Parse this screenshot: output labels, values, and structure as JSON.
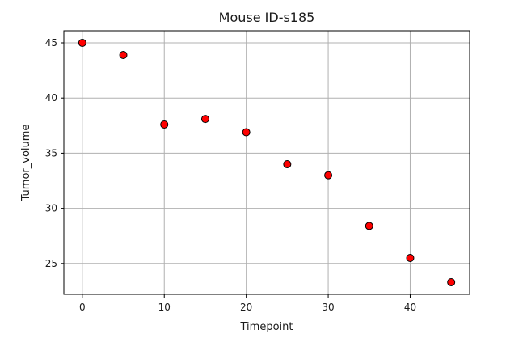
{
  "chart_data": {
    "type": "scatter",
    "title": "Mouse ID-s185",
    "xlabel": "Timepoint",
    "ylabel": "Tumor_volume",
    "x": [
      0,
      5,
      10,
      15,
      20,
      25,
      30,
      35,
      40,
      45
    ],
    "y": [
      45.0,
      43.9,
      37.6,
      38.1,
      36.9,
      34.0,
      33.0,
      28.4,
      25.5,
      23.3
    ],
    "xlim": [
      -2.25,
      47.25
    ],
    "ylim": [
      22.2,
      46.1
    ],
    "xticks": [
      0,
      10,
      20,
      30,
      40
    ],
    "yticks": [
      25,
      30,
      35,
      40,
      45
    ],
    "grid": true,
    "marker_color": "#ff0000",
    "marker_edge_color": "#000000"
  }
}
